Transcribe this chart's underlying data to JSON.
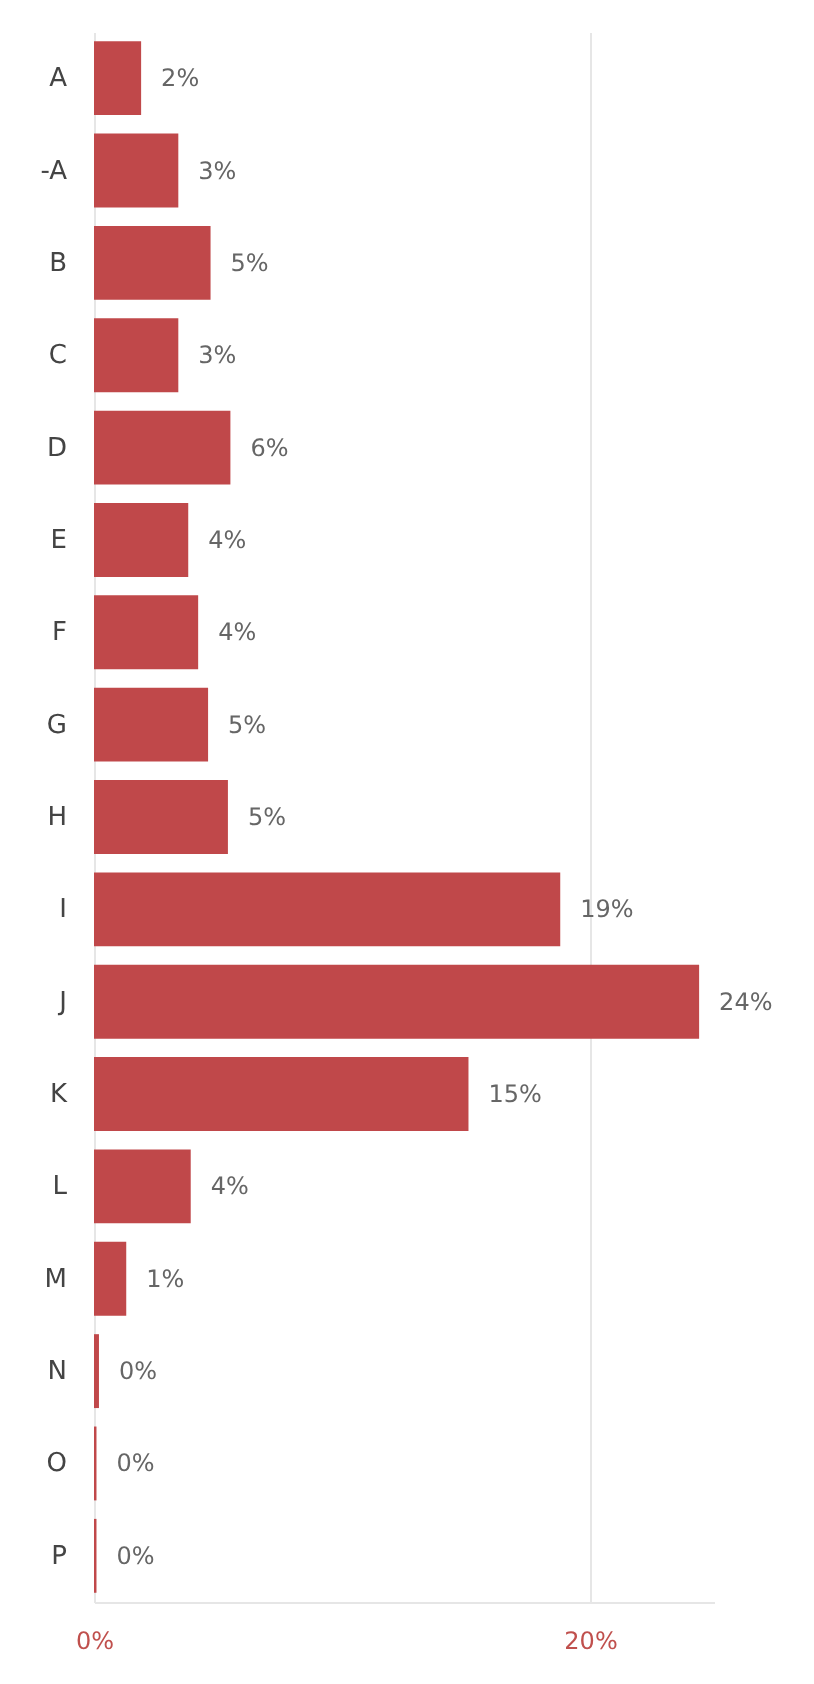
{
  "chart_data": {
    "type": "bar",
    "orientation": "horizontal",
    "categories": [
      "A",
      "-A",
      "B",
      "C",
      "D",
      "E",
      "F",
      "G",
      "H",
      "I",
      "J",
      "K",
      "L",
      "M",
      "N",
      "O",
      "P"
    ],
    "values": [
      1.9,
      3.4,
      4.7,
      3.4,
      5.5,
      3.8,
      4.2,
      4.6,
      5.4,
      18.8,
      24.4,
      15.1,
      3.9,
      1.3,
      0.2,
      0.1,
      0.1
    ],
    "value_labels": [
      "2%",
      "3%",
      "5%",
      "3%",
      "6%",
      "4%",
      "4%",
      "5%",
      "5%",
      "19%",
      "24%",
      "15%",
      "4%",
      "1%",
      "0%",
      "0%",
      "0%"
    ],
    "color": "#c0484a",
    "xlim": [
      0,
      25
    ],
    "xticks": [
      {
        "value": 0,
        "label": "0%"
      },
      {
        "value": 20,
        "label": "20%"
      }
    ],
    "grid": "x"
  }
}
